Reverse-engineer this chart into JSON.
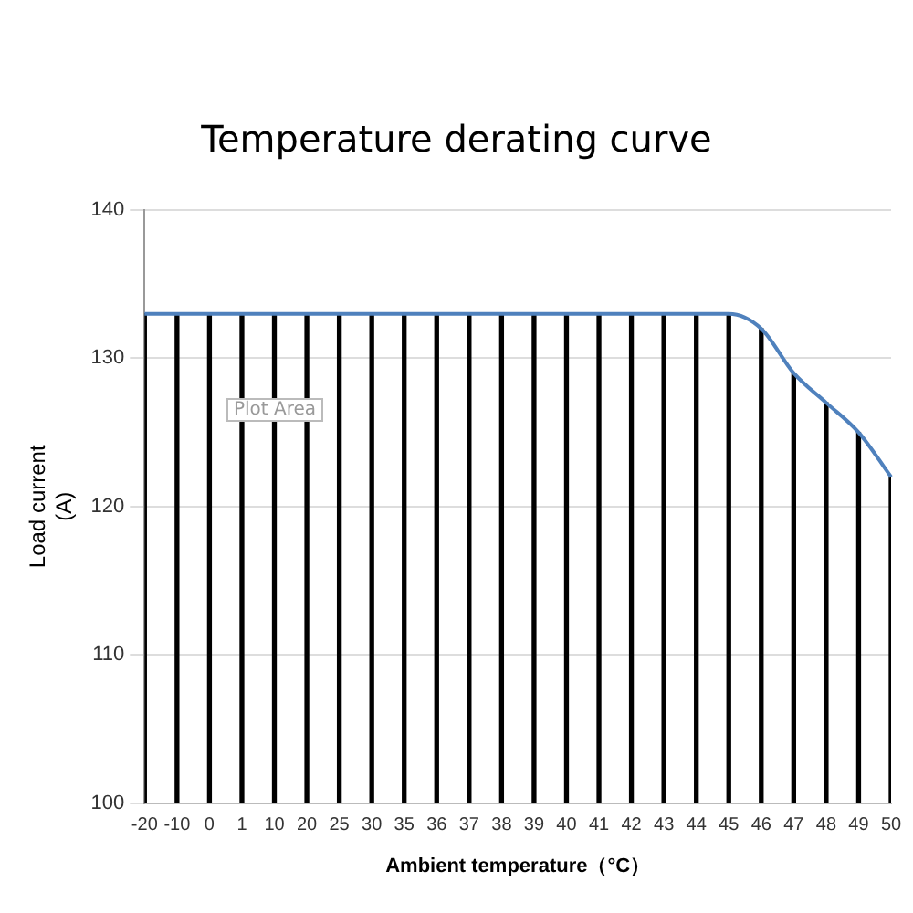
{
  "chart_data": {
    "type": "line",
    "title": "Temperature derating curve",
    "xlabel": "Ambient temperature（°C）",
    "ylabel": "Load current\n(A)",
    "categories": [
      "-20",
      "-10",
      "0",
      "1",
      "10",
      "20",
      "25",
      "30",
      "35",
      "36",
      "37",
      "38",
      "39",
      "40",
      "41",
      "42",
      "43",
      "44",
      "45",
      "46",
      "47",
      "48",
      "49",
      "50"
    ],
    "series": [
      {
        "color": "#4f81bd",
        "values": [
          133,
          133,
          133,
          133,
          133,
          133,
          133,
          133,
          133,
          133,
          133,
          133,
          133,
          133,
          133,
          133,
          133,
          133,
          133,
          132,
          129,
          127,
          125,
          122
        ]
      },
      {
        "type": "bar",
        "color": "#000000",
        "values": [
          133,
          133,
          133,
          133,
          133,
          133,
          133,
          133,
          133,
          133,
          133,
          133,
          133,
          133,
          133,
          133,
          133,
          133,
          133,
          132,
          129,
          127,
          125,
          122
        ]
      }
    ],
    "ylim": [
      100,
      140
    ],
    "yticks": [
      100,
      110,
      120,
      130,
      140
    ],
    "grid": "y",
    "legend": false,
    "marker": "none",
    "line_style": "solid",
    "annotations": [
      "Plot Area"
    ]
  }
}
